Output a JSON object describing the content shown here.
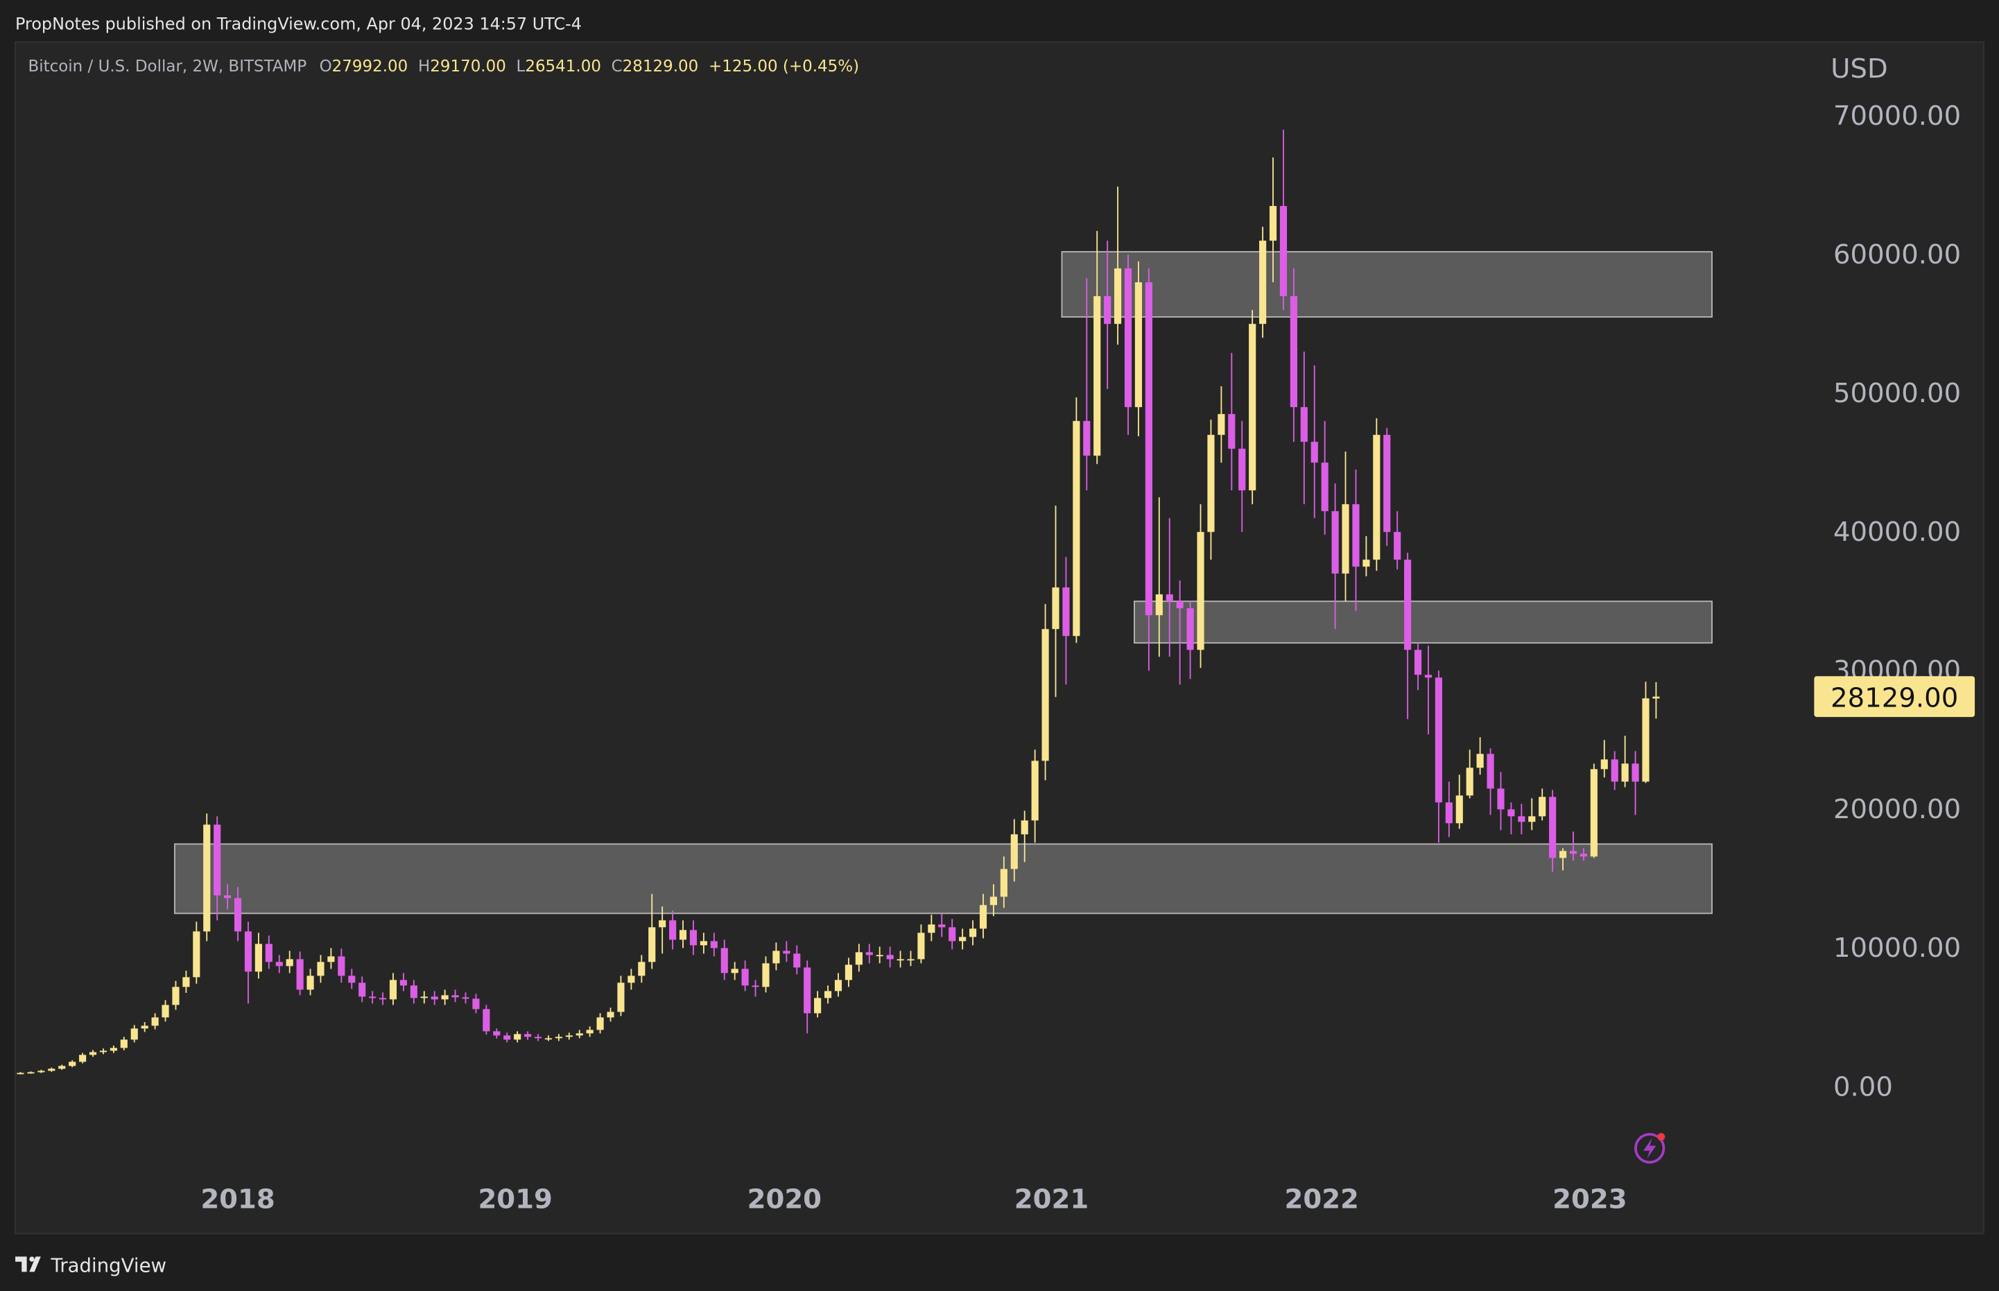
{
  "header": {
    "published": "PropNotes published on TradingView.com, Apr 04, 2023 14:57 UTC-4"
  },
  "footer": {
    "brand": "TradingView"
  },
  "chart_data": {
    "type": "candlestick",
    "legend": {
      "symbol": "Bitcoin / U.S. Dollar, 2W, BITSTAMP",
      "open_label": "O",
      "open": "27992.00",
      "high_label": "H",
      "high": "29170.00",
      "low_label": "L",
      "low": "26541.00",
      "close_label": "C",
      "close": "28129.00",
      "change": "+125.00 (+0.45%)"
    },
    "currency": "USD",
    "last_price_label": "28129.00",
    "colors": {
      "up": "#f9e58f",
      "down": "#dc5ee6"
    },
    "xlim": [
      -0.5,
      172.9
    ],
    "xticks": [
      {
        "value": 21,
        "label": "2018"
      },
      {
        "value": 47.8,
        "label": "2019"
      },
      {
        "value": 73.8,
        "label": "2020"
      },
      {
        "value": 99.6,
        "label": "2021"
      },
      {
        "value": 125.7,
        "label": "2022"
      },
      {
        "value": 151.6,
        "label": "2023"
      }
    ],
    "ylim": [
      -10590,
      75320
    ],
    "yticks": [
      {
        "value": 0,
        "label": "0.00"
      },
      {
        "value": 10000,
        "label": "10000.00"
      },
      {
        "value": 20000,
        "label": "20000.00"
      },
      {
        "value": 30000,
        "label": "30000.00"
      },
      {
        "value": 40000,
        "label": "40000.00"
      },
      {
        "value": 50000,
        "label": "50000.00"
      },
      {
        "value": 60000,
        "label": "60000.00"
      },
      {
        "value": 70000,
        "label": "70000.00"
      }
    ],
    "zones": [
      {
        "x": [
          14.9,
          163.4
        ],
        "y": [
          12500,
          17500
        ]
      },
      {
        "x": [
          107.6,
          163.4
        ],
        "y": [
          32000,
          35000
        ]
      },
      {
        "x": [
          100.6,
          163.4
        ],
        "y": [
          55500,
          60200
        ]
      }
    ],
    "ohlc": [
      [
        950,
        1060,
        890,
        1000
      ],
      [
        1000,
        1110,
        940,
        1050
      ],
      [
        1050,
        1220,
        990,
        1150
      ],
      [
        1150,
        1380,
        1080,
        1300
      ],
      [
        1300,
        1590,
        1220,
        1500
      ],
      [
        1500,
        1910,
        1410,
        1800
      ],
      [
        1800,
        2440,
        1690,
        2300
      ],
      [
        2300,
        2650,
        2160,
        2500
      ],
      [
        2500,
        2760,
        2350,
        2600
      ],
      [
        2600,
        2970,
        2440,
        2800
      ],
      [
        2800,
        3600,
        2630,
        3400
      ],
      [
        3400,
        4450,
        3200,
        4200
      ],
      [
        4200,
        4660,
        3950,
        4400
      ],
      [
        4400,
        5300,
        4140,
        5000
      ],
      [
        5000,
        6250,
        4700,
        5900
      ],
      [
        5900,
        7630,
        5550,
        7200
      ],
      [
        7200,
        8370,
        6770,
        7900
      ],
      [
        7900,
        11900,
        7430,
        11200
      ],
      [
        11200,
        19700,
        10500,
        18900
      ],
      [
        18900,
        19500,
        12000,
        13800
      ],
      [
        13800,
        14600,
        12800,
        13600
      ],
      [
        13600,
        14400,
        10500,
        11200
      ],
      [
        11200,
        11900,
        6000,
        8300
      ],
      [
        8300,
        11100,
        7800,
        10300
      ],
      [
        10300,
        10900,
        8500,
        9000
      ],
      [
        9000,
        9500,
        8200,
        8700
      ],
      [
        8700,
        9800,
        8200,
        9200
      ],
      [
        9200,
        9750,
        6600,
        7000
      ],
      [
        7000,
        8500,
        6600,
        8000
      ],
      [
        8000,
        9500,
        7500,
        9000
      ],
      [
        9000,
        10000,
        8500,
        9400
      ],
      [
        9400,
        9960,
        7500,
        8000
      ],
      [
        8000,
        8500,
        7050,
        7500
      ],
      [
        7500,
        7950,
        6100,
        6500
      ],
      [
        6500,
        6900,
        6000,
        6400
      ],
      [
        6400,
        6800,
        5900,
        6300
      ],
      [
        6300,
        8200,
        5900,
        7700
      ],
      [
        7700,
        8200,
        6900,
        7300
      ],
      [
        7300,
        7700,
        6000,
        6400
      ],
      [
        6400,
        6900,
        6000,
        6500
      ],
      [
        6500,
        6900,
        5900,
        6300
      ],
      [
        6300,
        7000,
        5900,
        6600
      ],
      [
        6600,
        7000,
        6100,
        6450
      ],
      [
        6450,
        6800,
        6000,
        6350
      ],
      [
        6350,
        6700,
        5300,
        5600
      ],
      [
        5600,
        5900,
        3760,
        4000
      ],
      [
        4000,
        4200,
        3480,
        3700
      ],
      [
        3700,
        3900,
        3200,
        3400
      ],
      [
        3400,
        4000,
        3200,
        3800
      ],
      [
        3800,
        4000,
        3380,
        3600
      ],
      [
        3600,
        3800,
        3300,
        3500
      ],
      [
        3500,
        3700,
        3300,
        3500
      ],
      [
        3500,
        3800,
        3300,
        3600
      ],
      [
        3600,
        3900,
        3400,
        3700
      ],
      [
        3700,
        4100,
        3500,
        3850
      ],
      [
        3850,
        4350,
        3600,
        4100
      ],
      [
        4100,
        5300,
        3850,
        5000
      ],
      [
        5000,
        5700,
        4700,
        5400
      ],
      [
        5400,
        8000,
        5100,
        7500
      ],
      [
        7500,
        8500,
        7000,
        8000
      ],
      [
        8000,
        9500,
        7500,
        9000
      ],
      [
        9000,
        13900,
        8500,
        11500
      ],
      [
        11500,
        13000,
        9600,
        12000
      ],
      [
        12000,
        12700,
        9900,
        10600
      ],
      [
        10600,
        12000,
        10000,
        11300
      ],
      [
        11300,
        12000,
        9500,
        10200
      ],
      [
        10200,
        11100,
        9600,
        10500
      ],
      [
        10500,
        11100,
        9400,
        10000
      ],
      [
        10000,
        10600,
        7700,
        8200
      ],
      [
        8200,
        9000,
        7700,
        8500
      ],
      [
        8500,
        9100,
        6900,
        7300
      ],
      [
        7300,
        7700,
        6500,
        7200
      ],
      [
        7200,
        9400,
        6800,
        8900
      ],
      [
        8900,
        10400,
        8400,
        9800
      ],
      [
        9800,
        10500,
        9000,
        9600
      ],
      [
        9600,
        10200,
        8100,
        8600
      ],
      [
        8600,
        9100,
        3850,
        5300
      ],
      [
        5300,
        6900,
        5000,
        6400
      ],
      [
        6400,
        7300,
        6000,
        6900
      ],
      [
        6900,
        8200,
        6500,
        7700
      ],
      [
        7700,
        9300,
        7200,
        8800
      ],
      [
        8800,
        10300,
        8300,
        9700
      ],
      [
        9700,
        10300,
        8900,
        9500
      ],
      [
        9500,
        10100,
        8900,
        9500
      ],
      [
        9500,
        10100,
        8600,
        9200
      ],
      [
        9200,
        9800,
        8600,
        9200
      ],
      [
        9200,
        9800,
        8700,
        9200
      ],
      [
        9200,
        11700,
        8900,
        11100
      ],
      [
        11100,
        12400,
        10500,
        11700
      ],
      [
        11700,
        12500,
        10800,
        11500
      ],
      [
        11500,
        12100,
        9900,
        10500
      ],
      [
        10500,
        11400,
        9900,
        10800
      ],
      [
        10800,
        12000,
        10200,
        11400
      ],
      [
        11400,
        13900,
        10700,
        13100
      ],
      [
        13100,
        14600,
        12300,
        13700
      ],
      [
        13700,
        16600,
        12900,
        15700
      ],
      [
        15700,
        19300,
        14800,
        18200
      ],
      [
        18200,
        19900,
        16200,
        19200
      ],
      [
        19200,
        24300,
        17600,
        23500
      ],
      [
        23500,
        34800,
        22100,
        33000
      ],
      [
        33000,
        41900,
        28100,
        36000
      ],
      [
        36000,
        38200,
        29000,
        32500
      ],
      [
        32500,
        49700,
        32000,
        48000
      ],
      [
        48000,
        58300,
        43000,
        45500
      ],
      [
        45500,
        61700,
        44900,
        57000
      ],
      [
        57000,
        61000,
        50300,
        55000
      ],
      [
        55000,
        64900,
        53500,
        59000
      ],
      [
        59000,
        60000,
        47000,
        49000
      ],
      [
        49000,
        59500,
        46900,
        58000
      ],
      [
        58000,
        59000,
        30000,
        34000
      ],
      [
        34000,
        42500,
        31000,
        35500
      ],
      [
        35500,
        41000,
        31000,
        35000
      ],
      [
        35000,
        36500,
        29000,
        34500
      ],
      [
        34500,
        35000,
        29400,
        31500
      ],
      [
        31500,
        42000,
        30200,
        40000
      ],
      [
        40000,
        48100,
        38000,
        47000
      ],
      [
        47000,
        50500,
        45000,
        48500
      ],
      [
        48500,
        52900,
        43000,
        46000
      ],
      [
        46000,
        48000,
        40000,
        43000
      ],
      [
        43000,
        56000,
        42000,
        55000
      ],
      [
        55000,
        62000,
        54000,
        61000
      ],
      [
        61000,
        67000,
        58000,
        63500
      ],
      [
        63500,
        69000,
        56000,
        57000
      ],
      [
        57000,
        59000,
        46500,
        49000
      ],
      [
        49000,
        53000,
        42000,
        46500
      ],
      [
        46500,
        52000,
        41000,
        45000
      ],
      [
        45000,
        48000,
        39800,
        41500
      ],
      [
        41500,
        43500,
        33000,
        37000
      ],
      [
        37000,
        45800,
        35000,
        42000
      ],
      [
        42000,
        44500,
        34300,
        37500
      ],
      [
        37500,
        39700,
        36800,
        38000
      ],
      [
        38000,
        48200,
        37200,
        47000
      ],
      [
        47000,
        47500,
        39000,
        40000
      ],
      [
        40000,
        41500,
        37300,
        38000
      ],
      [
        38000,
        38500,
        26500,
        31500
      ],
      [
        31500,
        32000,
        28600,
        29700
      ],
      [
        29700,
        31800,
        25400,
        29500
      ],
      [
        29500,
        30000,
        17600,
        20500
      ],
      [
        20500,
        22000,
        18000,
        19000
      ],
      [
        19000,
        22500,
        18600,
        21000
      ],
      [
        21000,
        24300,
        20800,
        23000
      ],
      [
        23000,
        25200,
        22500,
        24000
      ],
      [
        24000,
        24400,
        19600,
        21500
      ],
      [
        21500,
        22700,
        18500,
        20000
      ],
      [
        20000,
        20500,
        18200,
        19500
      ],
      [
        19500,
        20400,
        18200,
        19100
      ],
      [
        19100,
        20800,
        18500,
        19500
      ],
      [
        19500,
        21500,
        19200,
        20900
      ],
      [
        20900,
        21400,
        15500,
        16500
      ],
      [
        16500,
        17200,
        15600,
        17000
      ],
      [
        17000,
        18400,
        16300,
        16800
      ],
      [
        16800,
        17200,
        16300,
        16600
      ],
      [
        16600,
        23300,
        16500,
        22900
      ],
      [
        22900,
        25000,
        22300,
        23600
      ],
      [
        23600,
        24200,
        21400,
        22000
      ],
      [
        22000,
        25300,
        21600,
        23300
      ],
      [
        23300,
        24200,
        19600,
        22000
      ],
      [
        22000,
        29200,
        21900,
        28004
      ],
      [
        27992,
        29170,
        26541,
        28129
      ]
    ]
  }
}
